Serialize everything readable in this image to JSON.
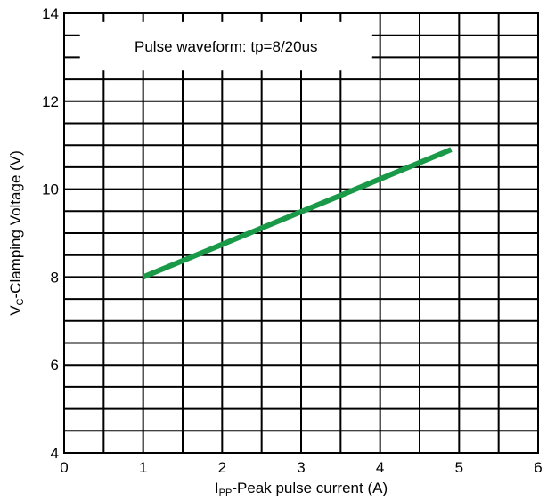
{
  "chart_data": {
    "type": "line",
    "annotation": "Pulse waveform: tp=8/20us",
    "xlabel": {
      "main": "I",
      "sub": "PP",
      "rest": "-Peak pulse current (A)"
    },
    "ylabel": {
      "main": "V",
      "sub": "C",
      "rest": "-Clamping Voltage (V)"
    },
    "xlim": [
      0,
      6
    ],
    "ylim": [
      4,
      14
    ],
    "x_ticks": [
      "0",
      "1",
      "2",
      "3",
      "4",
      "5",
      "6"
    ],
    "y_ticks": [
      "4",
      "6",
      "8",
      "10",
      "12",
      "14"
    ],
    "grid": true,
    "series": [
      {
        "color": "#1a9a48",
        "x": [
          1.0,
          4.9
        ],
        "y": [
          8.0,
          10.9
        ]
      }
    ]
  }
}
